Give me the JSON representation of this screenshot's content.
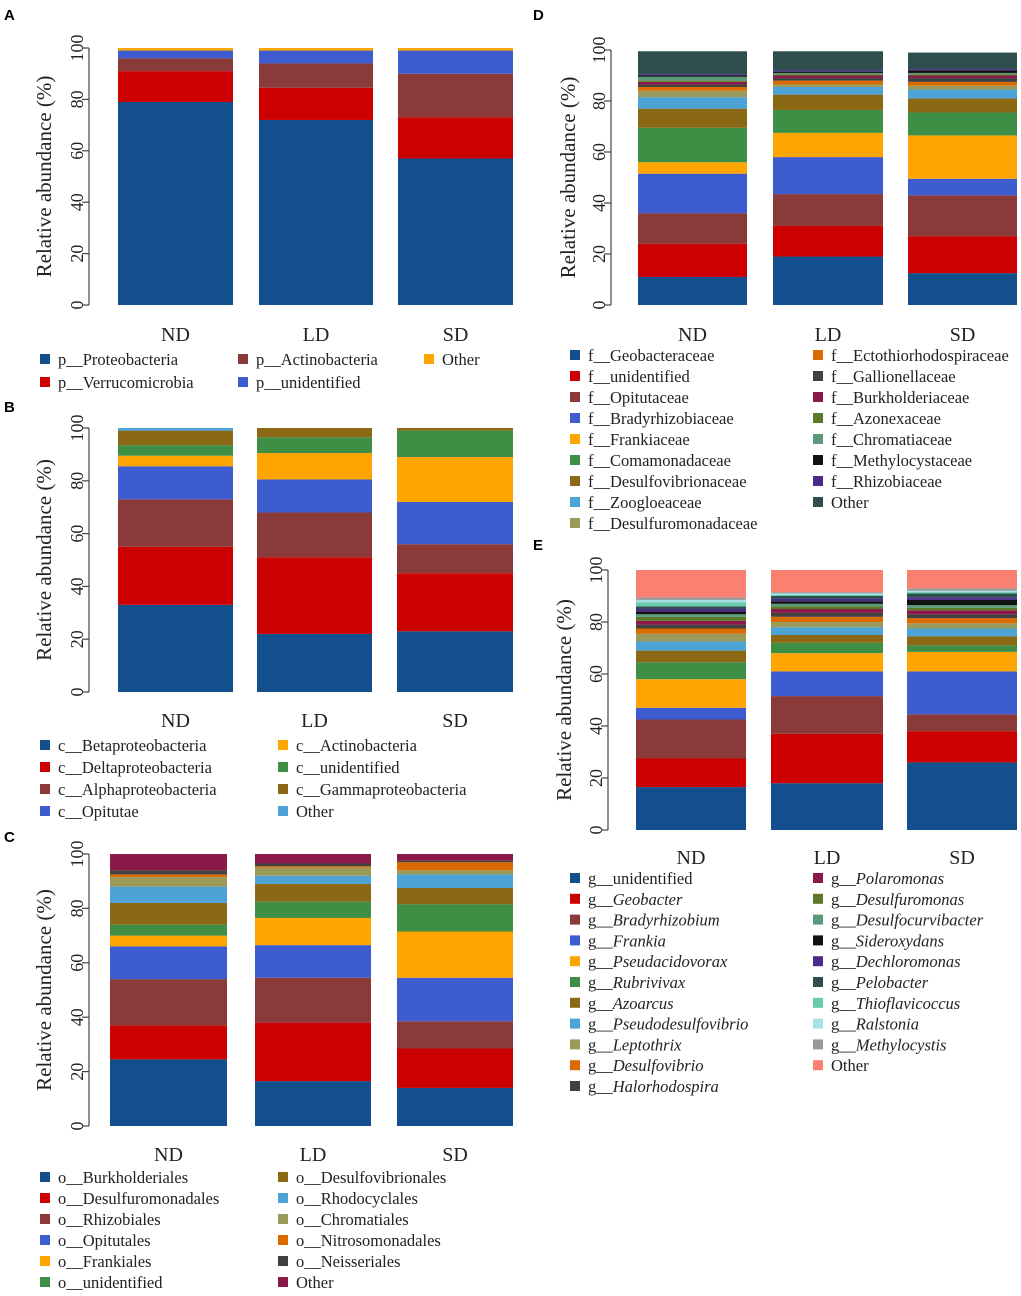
{
  "chart_data": [
    {
      "panel": "A",
      "type": "stacked-bar",
      "ylabel": "Relative abundance (%)",
      "ylim": [
        0,
        100
      ],
      "yticks": [
        "0",
        "20",
        "40",
        "60",
        "80",
        "100"
      ],
      "categories": [
        "ND",
        "LD",
        "SD"
      ],
      "legend_columns": 3,
      "series": [
        {
          "prefix": "p__",
          "name": "Proteobacteria",
          "italic": false,
          "color": "#134f8c",
          "values": [
            79,
            72,
            57
          ]
        },
        {
          "prefix": "p__",
          "name": "Verrucomicrobia",
          "italic": false,
          "color": "#cc0000",
          "values": [
            12,
            12.5,
            16
          ]
        },
        {
          "prefix": "p__",
          "name": "Actinobacteria",
          "italic": false,
          "color": "#8b3a3a",
          "values": [
            5,
            9.5,
            17
          ]
        },
        {
          "prefix": "p__",
          "name": "unidentified",
          "italic": false,
          "color": "#3c5ccf",
          "values": [
            3,
            5,
            9
          ]
        },
        {
          "prefix": "",
          "name": "Other",
          "italic": false,
          "color": "#ffa500",
          "values": [
            1,
            1,
            1
          ]
        }
      ]
    },
    {
      "panel": "B",
      "type": "stacked-bar",
      "ylabel": "Relative abundance (%)",
      "ylim": [
        0,
        100
      ],
      "yticks": [
        "0",
        "20",
        "40",
        "60",
        "80",
        "100"
      ],
      "categories": [
        "ND",
        "LD",
        "SD"
      ],
      "legend_columns": 2,
      "series": [
        {
          "prefix": "c__",
          "name": "Betaproteobacteria",
          "italic": false,
          "color": "#134f8c",
          "values": [
            33,
            22,
            23
          ]
        },
        {
          "prefix": "c__",
          "name": "Deltaproteobacteria",
          "italic": false,
          "color": "#cc0000",
          "values": [
            22,
            29,
            22
          ]
        },
        {
          "prefix": "c__",
          "name": "Alphaproteobacteria",
          "italic": false,
          "color": "#8b3a3a",
          "values": [
            18,
            17,
            11
          ]
        },
        {
          "prefix": "c__",
          "name": "Opitutae",
          "italic": false,
          "color": "#3c5ccf",
          "values": [
            12.5,
            12.5,
            16
          ]
        },
        {
          "prefix": "c__",
          "name": "Actinobacteria",
          "italic": false,
          "color": "#ffa500",
          "values": [
            4,
            10,
            17
          ]
        },
        {
          "prefix": "c__",
          "name": "unidentified",
          "italic": false,
          "color": "#3e8e46",
          "values": [
            4,
            6,
            10
          ]
        },
        {
          "prefix": "c__",
          "name": "Gammaproteobacteria",
          "italic": false,
          "color": "#8b6914",
          "values": [
            5.5,
            3.5,
            1
          ]
        },
        {
          "prefix": "",
          "name": "Other",
          "italic": false,
          "color": "#4da3d6",
          "values": [
            1,
            0,
            0
          ]
        }
      ]
    },
    {
      "panel": "C",
      "type": "stacked-bar",
      "ylabel": "Relative abundance (%)",
      "ylim": [
        0,
        100
      ],
      "yticks": [
        "0",
        "20",
        "40",
        "60",
        "80",
        "100"
      ],
      "categories": [
        "ND",
        "LD",
        "SD"
      ],
      "legend_columns": 2,
      "series": [
        {
          "prefix": "o__",
          "name": "Burkholderiales",
          "italic": false,
          "color": "#134f8c",
          "values": [
            24.5,
            16.5,
            14
          ]
        },
        {
          "prefix": "o__",
          "name": "Desulfuromonadales",
          "italic": false,
          "color": "#cc0000",
          "values": [
            12.5,
            21.5,
            14.5
          ]
        },
        {
          "prefix": "o__",
          "name": "Rhizobiales",
          "italic": false,
          "color": "#8b3a3a",
          "values": [
            17,
            16.5,
            10
          ]
        },
        {
          "prefix": "o__",
          "name": "Opitutales",
          "italic": false,
          "color": "#3c5ccf",
          "values": [
            12,
            12,
            16
          ]
        },
        {
          "prefix": "o__",
          "name": "Frankiales",
          "italic": false,
          "color": "#ffa500",
          "values": [
            4,
            10,
            17
          ]
        },
        {
          "prefix": "o__",
          "name": "unidentified",
          "italic": false,
          "color": "#3e8e46",
          "values": [
            4,
            6,
            10
          ]
        },
        {
          "prefix": "o__",
          "name": "Desulfovibrionales",
          "italic": false,
          "color": "#8b6914",
          "values": [
            8,
            6.5,
            6
          ]
        },
        {
          "prefix": "o__",
          "name": "Rhodocyclales",
          "italic": false,
          "color": "#4da3d6",
          "values": [
            6,
            3,
            5
          ]
        },
        {
          "prefix": "o__",
          "name": "Chromatiales",
          "italic": false,
          "color": "#9a9a5a",
          "values": [
            3.5,
            3,
            1.5
          ]
        },
        {
          "prefix": "o__",
          "name": "Nitrosomonadales",
          "italic": false,
          "color": "#d96b00",
          "values": [
            1,
            0.5,
            3
          ]
        },
        {
          "prefix": "o__",
          "name": "Neisseriales",
          "italic": false,
          "color": "#404040",
          "values": [
            1.5,
            1,
            0.5
          ]
        },
        {
          "prefix": "",
          "name": "Other",
          "italic": false,
          "color": "#8b1a4a",
          "values": [
            6,
            3.5,
            2.5
          ]
        }
      ]
    },
    {
      "panel": "D",
      "type": "stacked-bar",
      "ylabel": "Relative abundance (%)",
      "ylim": [
        0,
        100
      ],
      "yticks": [
        "0",
        "20",
        "40",
        "60",
        "80",
        "100"
      ],
      "categories": [
        "ND",
        "LD",
        "SD"
      ],
      "legend_columns": 2,
      "series": [
        {
          "prefix": "f__",
          "name": "Geobacteraceae",
          "italic": false,
          "color": "#134f8c",
          "values": [
            11,
            19,
            12.5
          ]
        },
        {
          "prefix": "f__",
          "name": "unidentified",
          "italic": false,
          "color": "#cc0000",
          "values": [
            13,
            12,
            14.5
          ]
        },
        {
          "prefix": "f__",
          "name": "Opitutaceae",
          "italic": false,
          "color": "#8b3a3a",
          "values": [
            12,
            12.5,
            16
          ]
        },
        {
          "prefix": "f__",
          "name": "Bradyrhizobiaceae",
          "italic": false,
          "color": "#3c5ccf",
          "values": [
            15.5,
            14.5,
            6.5
          ]
        },
        {
          "prefix": "f__",
          "name": "Frankiaceae",
          "italic": false,
          "color": "#ffa500",
          "values": [
            4.5,
            9.5,
            17
          ]
        },
        {
          "prefix": "f__",
          "name": "Comamonadaceae",
          "italic": false,
          "color": "#3e8e46",
          "values": [
            13.5,
            9,
            9
          ]
        },
        {
          "prefix": "f__",
          "name": "Desulfovibrionaceae",
          "italic": false,
          "color": "#8b6914",
          "values": [
            7.5,
            6,
            5.5
          ]
        },
        {
          "prefix": "f__",
          "name": "Zoogloeaceae",
          "italic": false,
          "color": "#4da3d6",
          "values": [
            4.5,
            3,
            3.5
          ]
        },
        {
          "prefix": "f__",
          "name": "Desulfuromonadaceae",
          "italic": false,
          "color": "#9a9a5a",
          "values": [
            2.5,
            1,
            1.5
          ]
        },
        {
          "prefix": "f__",
          "name": "Ectothiorhodospiraceae",
          "italic": false,
          "color": "#d96b00",
          "values": [
            1.5,
            1.5,
            1.5
          ]
        },
        {
          "prefix": "f__",
          "name": "Gallionellaceae",
          "italic": false,
          "color": "#404040",
          "values": [
            1,
            1,
            1.5
          ]
        },
        {
          "prefix": "f__",
          "name": "Burkholderiaceae",
          "italic": false,
          "color": "#8b1a4a",
          "values": [
            1,
            1,
            1
          ]
        },
        {
          "prefix": "f__",
          "name": "Azonexaceae",
          "italic": false,
          "color": "#5a7a2a",
          "values": [
            0.5,
            0.5,
            0.5
          ]
        },
        {
          "prefix": "f__",
          "name": "Chromatiaceae",
          "italic": false,
          "color": "#5a9a7a",
          "values": [
            1.5,
            0.5,
            0.5
          ]
        },
        {
          "prefix": "f__",
          "name": "Methylocystaceae",
          "italic": false,
          "color": "#111111",
          "values": [
            0.5,
            0.5,
            1
          ]
        },
        {
          "prefix": "f__",
          "name": "Rhizobiaceae",
          "italic": false,
          "color": "#4a2a8a",
          "values": [
            0.5,
            0.5,
            0.5
          ]
        },
        {
          "prefix": "",
          "name": "Other",
          "italic": false,
          "color": "#2f4f4f",
          "values": [
            9,
            7.5,
            6.5
          ]
        }
      ]
    },
    {
      "panel": "E",
      "type": "stacked-bar",
      "ylabel": "Relative abundance (%)",
      "ylim": [
        0,
        100
      ],
      "yticks": [
        "0",
        "20",
        "40",
        "60",
        "80",
        "100"
      ],
      "categories": [
        "ND",
        "LD",
        "SD"
      ],
      "legend_columns": 2,
      "series": [
        {
          "prefix": "g__",
          "name": "unidentified",
          "italic": false,
          "color": "#134f8c",
          "values": [
            16.5,
            18,
            26
          ]
        },
        {
          "prefix": "g__",
          "name": "Geobacter",
          "italic": true,
          "color": "#cc0000",
          "values": [
            11,
            19,
            12
          ]
        },
        {
          "prefix": "g__",
          "name": "Bradyrhizobium",
          "italic": true,
          "color": "#8b3a3a",
          "values": [
            15,
            14.5,
            6.5
          ]
        },
        {
          "prefix": "g__",
          "name": "Frankia",
          "italic": true,
          "color": "#3c5ccf",
          "values": [
            4.5,
            9.5,
            16.5
          ]
        },
        {
          "prefix": "g__",
          "name": "Pseudacidovorax",
          "italic": true,
          "color": "#ffa500",
          "values": [
            11,
            7,
            7.5
          ]
        },
        {
          "prefix": "g__",
          "name": "Rubrivivax",
          "italic": true,
          "color": "#3e8e46",
          "values": [
            6.5,
            4,
            2.5
          ]
        },
        {
          "prefix": "g__",
          "name": "Azoarcus",
          "italic": true,
          "color": "#8b6914",
          "values": [
            4.5,
            3,
            3.5
          ]
        },
        {
          "prefix": "g__",
          "name": "Pseudodesulfovibrio",
          "italic": true,
          "color": "#4da3d6",
          "values": [
            3.5,
            3,
            3
          ]
        },
        {
          "prefix": "g__",
          "name": "Leptothrix",
          "italic": true,
          "color": "#9a9a5a",
          "values": [
            3,
            2,
            2
          ]
        },
        {
          "prefix": "g__",
          "name": "Desulfovibrio",
          "italic": true,
          "color": "#d96b00",
          "values": [
            2,
            2,
            2
          ]
        },
        {
          "prefix": "g__",
          "name": "Halorhodospira",
          "italic": true,
          "color": "#404040",
          "values": [
            1.5,
            1.5,
            1.5
          ]
        },
        {
          "prefix": "g__",
          "name": "Polaromonas",
          "italic": true,
          "color": "#8b1a4a",
          "values": [
            1.5,
            1.5,
            1.5
          ]
        },
        {
          "prefix": "g__",
          "name": "Desulfuromonas",
          "italic": true,
          "color": "#5a7a2a",
          "values": [
            1.5,
            1,
            1
          ]
        },
        {
          "prefix": "g__",
          "name": "Desulfocurvibacter",
          "italic": true,
          "color": "#5a9a7a",
          "values": [
            1,
            1,
            1
          ]
        },
        {
          "prefix": "g__",
          "name": "Sideroxydans",
          "italic": true,
          "color": "#111111",
          "values": [
            1,
            1,
            2
          ]
        },
        {
          "prefix": "g__",
          "name": "Dechloromonas",
          "italic": true,
          "color": "#4a2a8a",
          "values": [
            1,
            1,
            1
          ]
        },
        {
          "prefix": "g__",
          "name": "Pelobacter",
          "italic": true,
          "color": "#2f4f4f",
          "values": [
            1,
            1,
            1.5
          ]
        },
        {
          "prefix": "g__",
          "name": "Thioflavicoccus",
          "italic": true,
          "color": "#66ccaa",
          "values": [
            1.5,
            0.5,
            0.5
          ]
        },
        {
          "prefix": "g__",
          "name": "Ralstonia",
          "italic": true,
          "color": "#a8e0e8",
          "values": [
            1,
            0.5,
            0.5
          ]
        },
        {
          "prefix": "g__",
          "name": "Methylocystis",
          "italic": true,
          "color": "#999999",
          "values": [
            1,
            0.5,
            1
          ]
        },
        {
          "prefix": "",
          "name": "Other",
          "italic": false,
          "color": "#fa8072",
          "values": [
            10.5,
            8.5,
            7.5
          ]
        }
      ]
    }
  ]
}
